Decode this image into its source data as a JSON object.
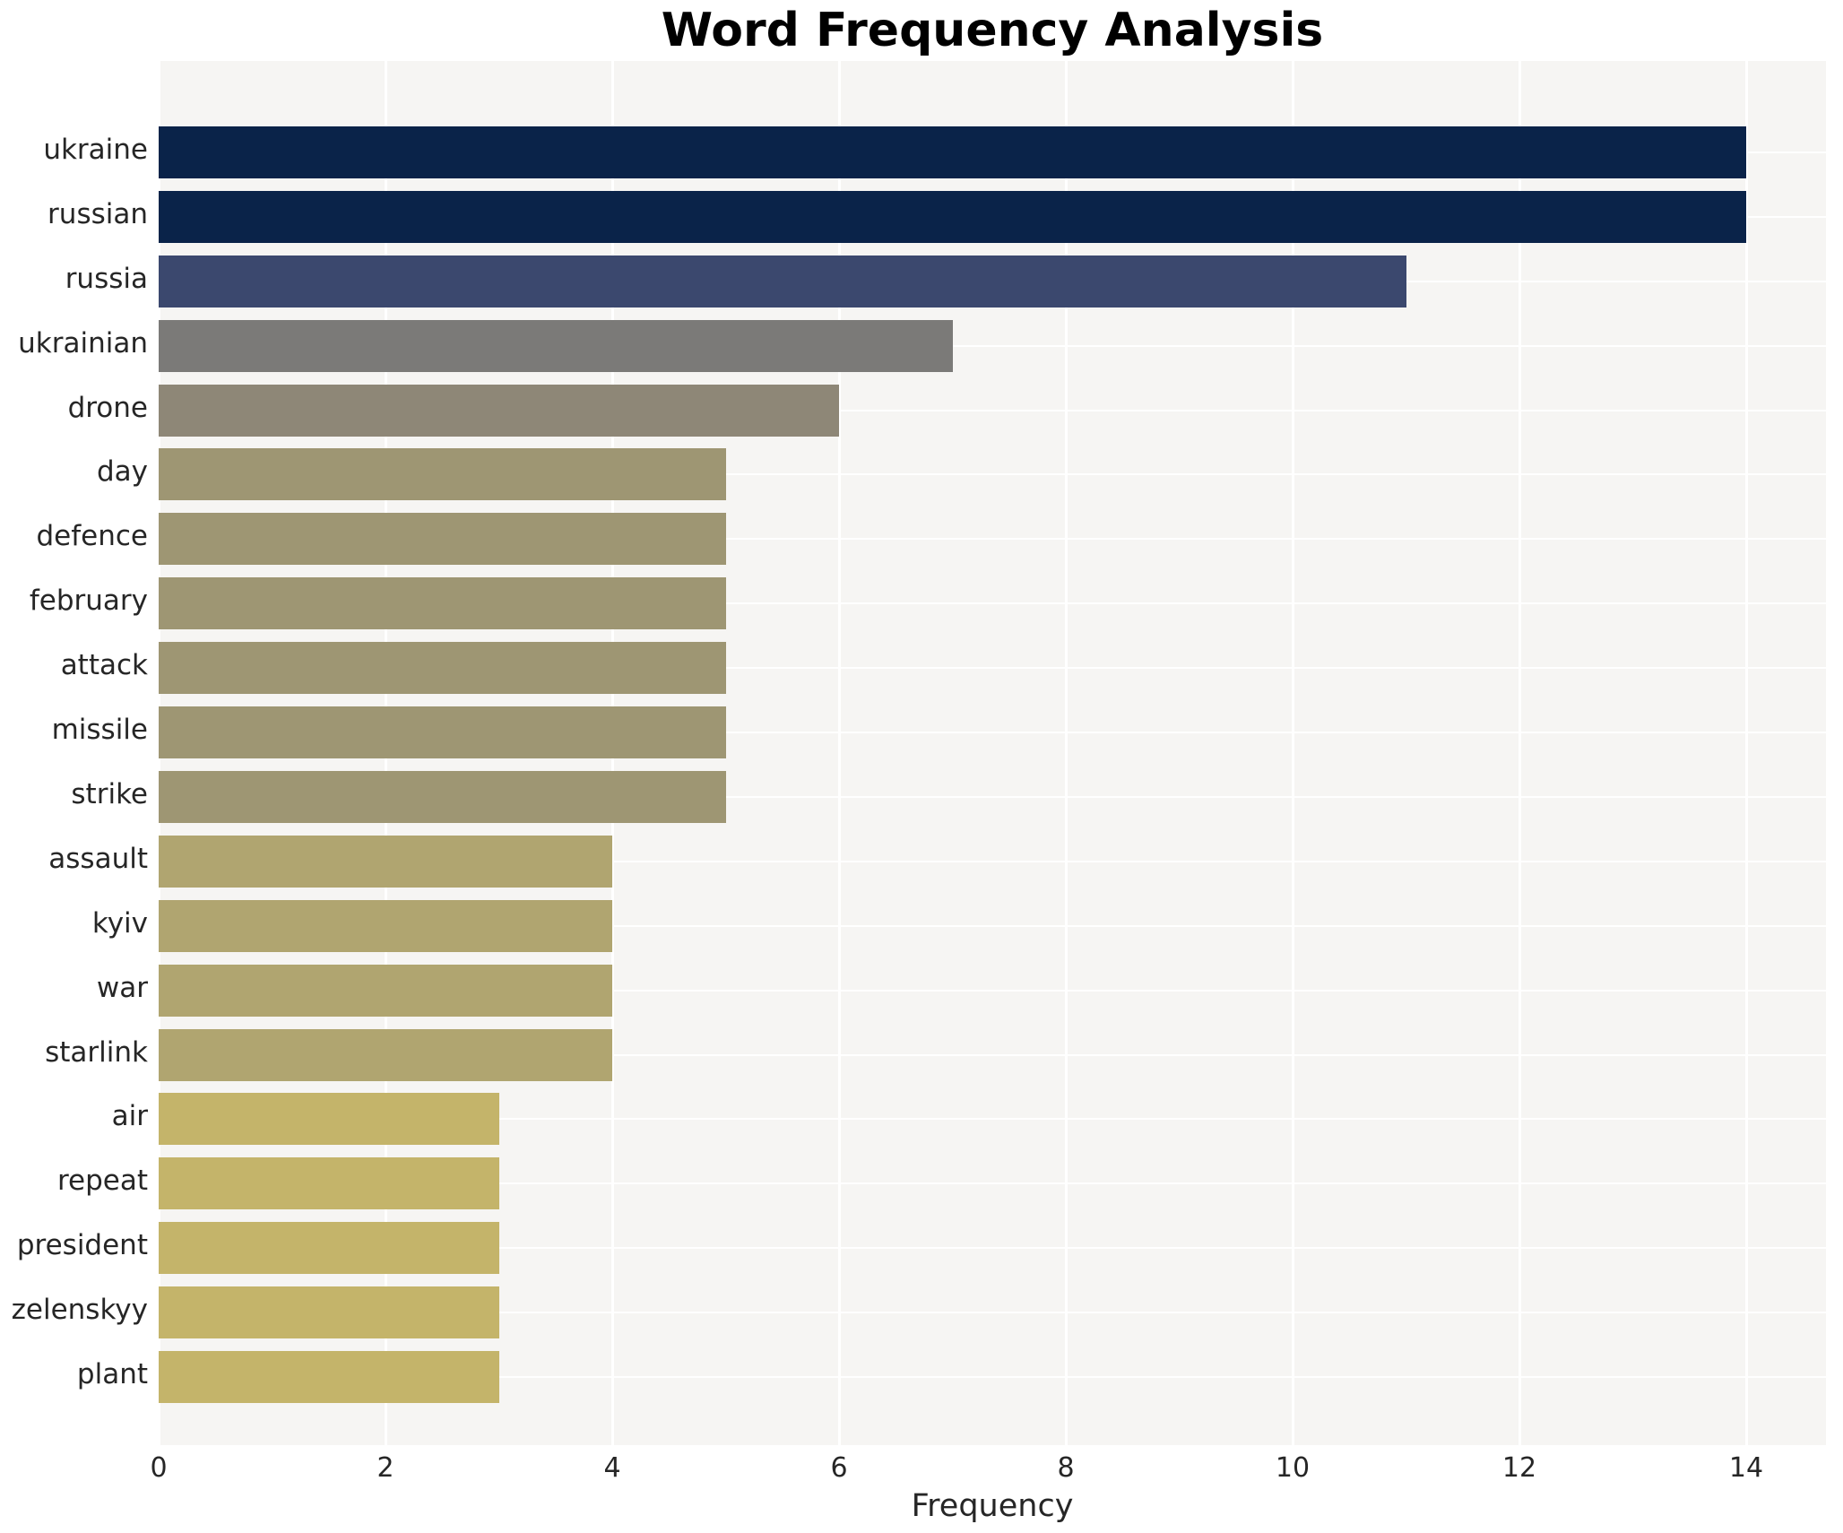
{
  "chart_data": {
    "type": "bar",
    "orientation": "horizontal",
    "title": "Word Frequency Analysis",
    "xlabel": "Frequency",
    "ylabel": "",
    "categories": [
      "ukraine",
      "russian",
      "russia",
      "ukrainian",
      "drone",
      "day",
      "defence",
      "february",
      "attack",
      "missile",
      "strike",
      "assault",
      "kyiv",
      "war",
      "starlink",
      "air",
      "repeat",
      "president",
      "zelenskyy",
      "plant"
    ],
    "values": [
      14,
      14,
      11,
      7,
      6,
      5,
      5,
      5,
      5,
      5,
      5,
      4,
      4,
      4,
      4,
      3,
      3,
      3,
      3,
      3
    ],
    "xticks": [
      0,
      2,
      4,
      6,
      8,
      10,
      12,
      14
    ],
    "xlim": [
      0,
      14.7
    ],
    "grid": true,
    "legend": false,
    "plot_bg_color": "#f6f5f3",
    "grid_color": "#ffffff",
    "text_color": "#262626",
    "title_color": "#000000",
    "bar_colors": [
      "#0a2349",
      "#0a2349",
      "#3b486e",
      "#7b7a78",
      "#8e8777",
      "#9e9673",
      "#9e9673",
      "#9e9673",
      "#9e9673",
      "#9e9673",
      "#9e9673",
      "#b0a570",
      "#b0a570",
      "#b0a570",
      "#b0a570",
      "#c4b46a",
      "#c4b46a",
      "#c4b46a",
      "#c4b46a",
      "#c4b46a"
    ],
    "value_color_map": {
      "14": "#0a2349",
      "11": "#3b486e",
      "7": "#7b7a78",
      "6": "#8e8777",
      "5": "#9e9673",
      "4": "#b0a570",
      "3": "#c4b46a"
    }
  }
}
